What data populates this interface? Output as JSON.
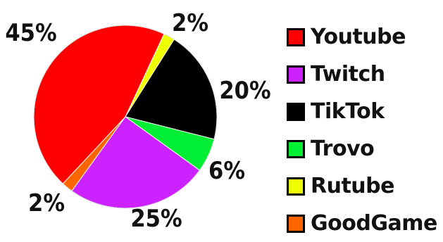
{
  "chart_data": {
    "type": "pie",
    "categories": [
      "Youtube",
      "Twitch",
      "TikTok",
      "Trovo",
      "Rutube",
      "GoodGame"
    ],
    "values": [
      45,
      25,
      20,
      6,
      2,
      2
    ],
    "value_labels": [
      "45%",
      "25%",
      "20%",
      "6%",
      "2%",
      "2%"
    ],
    "colors": [
      "#ff0000",
      "#cc22ff",
      "#000000",
      "#00ee33",
      "#eeff00",
      "#ff6600"
    ],
    "legend_position": "right"
  }
}
